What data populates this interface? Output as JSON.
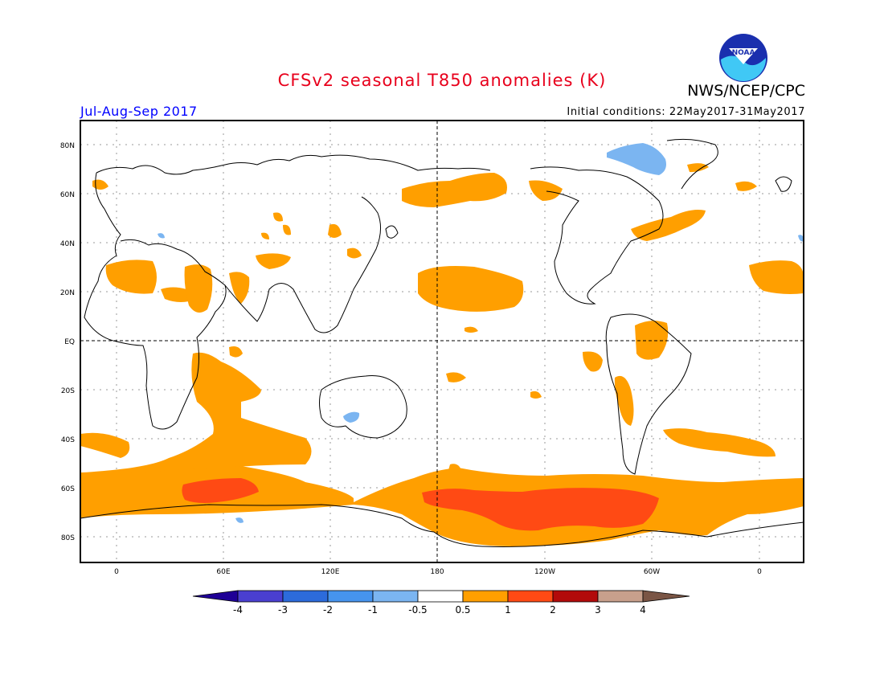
{
  "header": {
    "title": "CFSv2 seasonal T850 anomalies (K)",
    "agency": "NWS/NCEP/CPC",
    "logo_text": "NOAA",
    "period": "Jul-Aug-Sep 2017",
    "initial_conditions": "Initial conditions: 22May2017-31May2017"
  },
  "map": {
    "lat_labels": [
      "80N",
      "60N",
      "40N",
      "20N",
      "EQ",
      "20S",
      "40S",
      "60S",
      "80S"
    ],
    "lon_labels": [
      "0",
      "60E",
      "120E",
      "180",
      "120W",
      "60W",
      "0"
    ]
  },
  "colorbar": {
    "levels": [
      "-4",
      "-3",
      "-2",
      "-1",
      "-0.5",
      "0.5",
      "1",
      "2",
      "3",
      "4"
    ],
    "colors": {
      "lt_neg4": "#1f0096",
      "neg4_neg3": "#4a3fd0",
      "neg3_neg2": "#2c6bdb",
      "neg2_neg1": "#4694ee",
      "neg1_neg05": "#7bb5f1",
      "neutral": "#ffffff",
      "p05_1": "#ff9f00",
      "p1_2": "#ff4a14",
      "p2_3": "#b20a0a",
      "p3_4": "#c8a08c",
      "gt4": "#7a5545"
    }
  }
}
